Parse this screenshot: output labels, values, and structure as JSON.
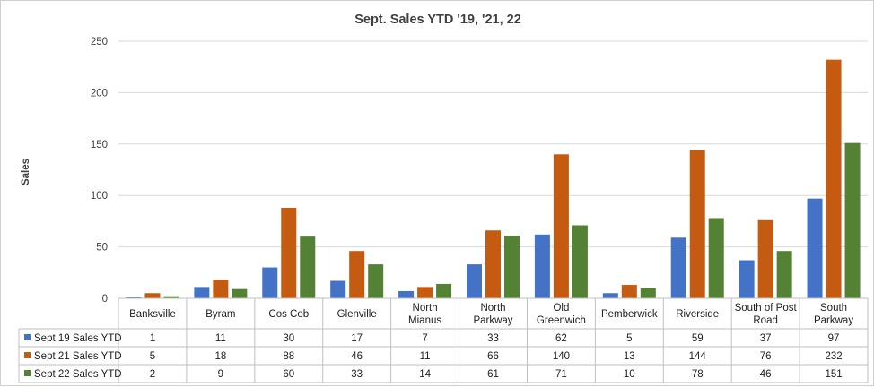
{
  "chart_data": {
    "type": "bar",
    "title": "Sept. Sales YTD '19, '21, 22",
    "ylabel": "Sales",
    "xlabel": "",
    "ylim": [
      0,
      250
    ],
    "yticks": [
      0,
      50,
      100,
      150,
      200,
      250
    ],
    "grid": true,
    "legend": "data-table",
    "categories": [
      [
        "Banksville"
      ],
      [
        "Byram"
      ],
      [
        "Cos Cob"
      ],
      [
        "Glenville"
      ],
      [
        "North",
        "Mianus"
      ],
      [
        "North",
        "Parkway"
      ],
      [
        "Old",
        "Greenwich"
      ],
      [
        "Pemberwick"
      ],
      [
        "Riverside"
      ],
      [
        "South of Post",
        "Road"
      ],
      [
        "South",
        "Parkway"
      ]
    ],
    "series": [
      {
        "name": "Sept 19 Sales YTD",
        "color": "#4472C4",
        "values": [
          1,
          11,
          30,
          17,
          7,
          33,
          62,
          5,
          59,
          37,
          97
        ]
      },
      {
        "name": "Sept 21 Sales YTD",
        "color": "#C55A11",
        "values": [
          5,
          18,
          88,
          46,
          11,
          66,
          140,
          13,
          144,
          76,
          232
        ]
      },
      {
        "name": "Sept 22 Sales YTD",
        "color": "#548235",
        "values": [
          2,
          9,
          60,
          33,
          14,
          61,
          71,
          10,
          78,
          46,
          151
        ]
      }
    ]
  }
}
